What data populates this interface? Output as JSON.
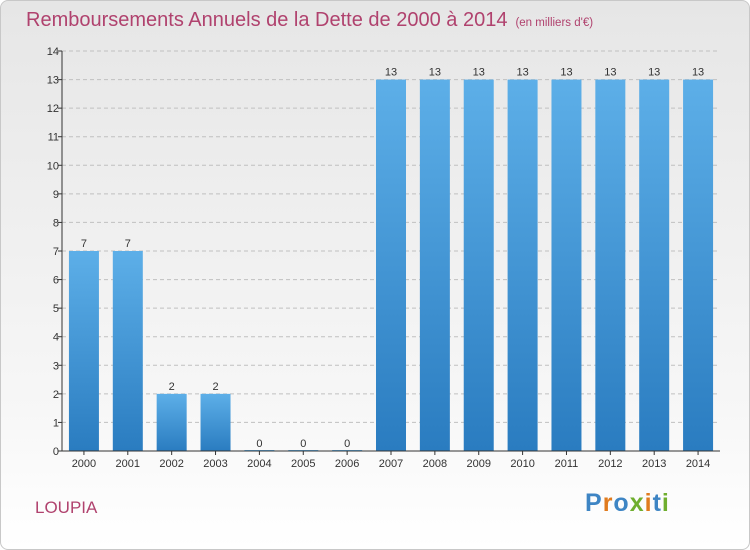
{
  "page": {
    "title": "Remboursements Annuels de la Dette de 2000 à 2014",
    "unit": "(en milliers d'€)",
    "commune": "LOUPIA",
    "brand": "Proxiti",
    "colors": {
      "title": "#b0426e",
      "bar_top": "#5dafe8",
      "bar_bottom": "#2a7cc0",
      "grid": "#c0c0c0",
      "axis": "#333333",
      "brand_letters": [
        "#3e85c4",
        "#e07b1e",
        "#3e85c4",
        "#6fae2e",
        "#e07b1e",
        "#3e85c4",
        "#6fae2e"
      ]
    }
  },
  "chart_data": {
    "type": "bar",
    "categories": [
      "2000",
      "2001",
      "2002",
      "2003",
      "2004",
      "2005",
      "2006",
      "2007",
      "2008",
      "2009",
      "2010",
      "2011",
      "2012",
      "2013",
      "2014"
    ],
    "values": [
      7,
      7,
      2,
      2,
      0,
      0,
      0,
      13,
      13,
      13,
      13,
      13,
      13,
      13,
      13
    ],
    "data_labels": [
      "7",
      "7",
      "2",
      "2",
      "0",
      "0",
      "0",
      "13",
      "13",
      "13",
      "13",
      "13",
      "13",
      "13",
      "13"
    ],
    "yticks": [
      "0",
      "1",
      "2",
      "3",
      "4",
      "5",
      "6",
      "7",
      "8",
      "9",
      "10",
      "11",
      "12",
      "13",
      "14"
    ],
    "ylim": [
      0,
      14
    ],
    "grid": true,
    "title": "Remboursements Annuels de la Dette de 2000 à 2014",
    "xlabel": "",
    "ylabel": ""
  }
}
